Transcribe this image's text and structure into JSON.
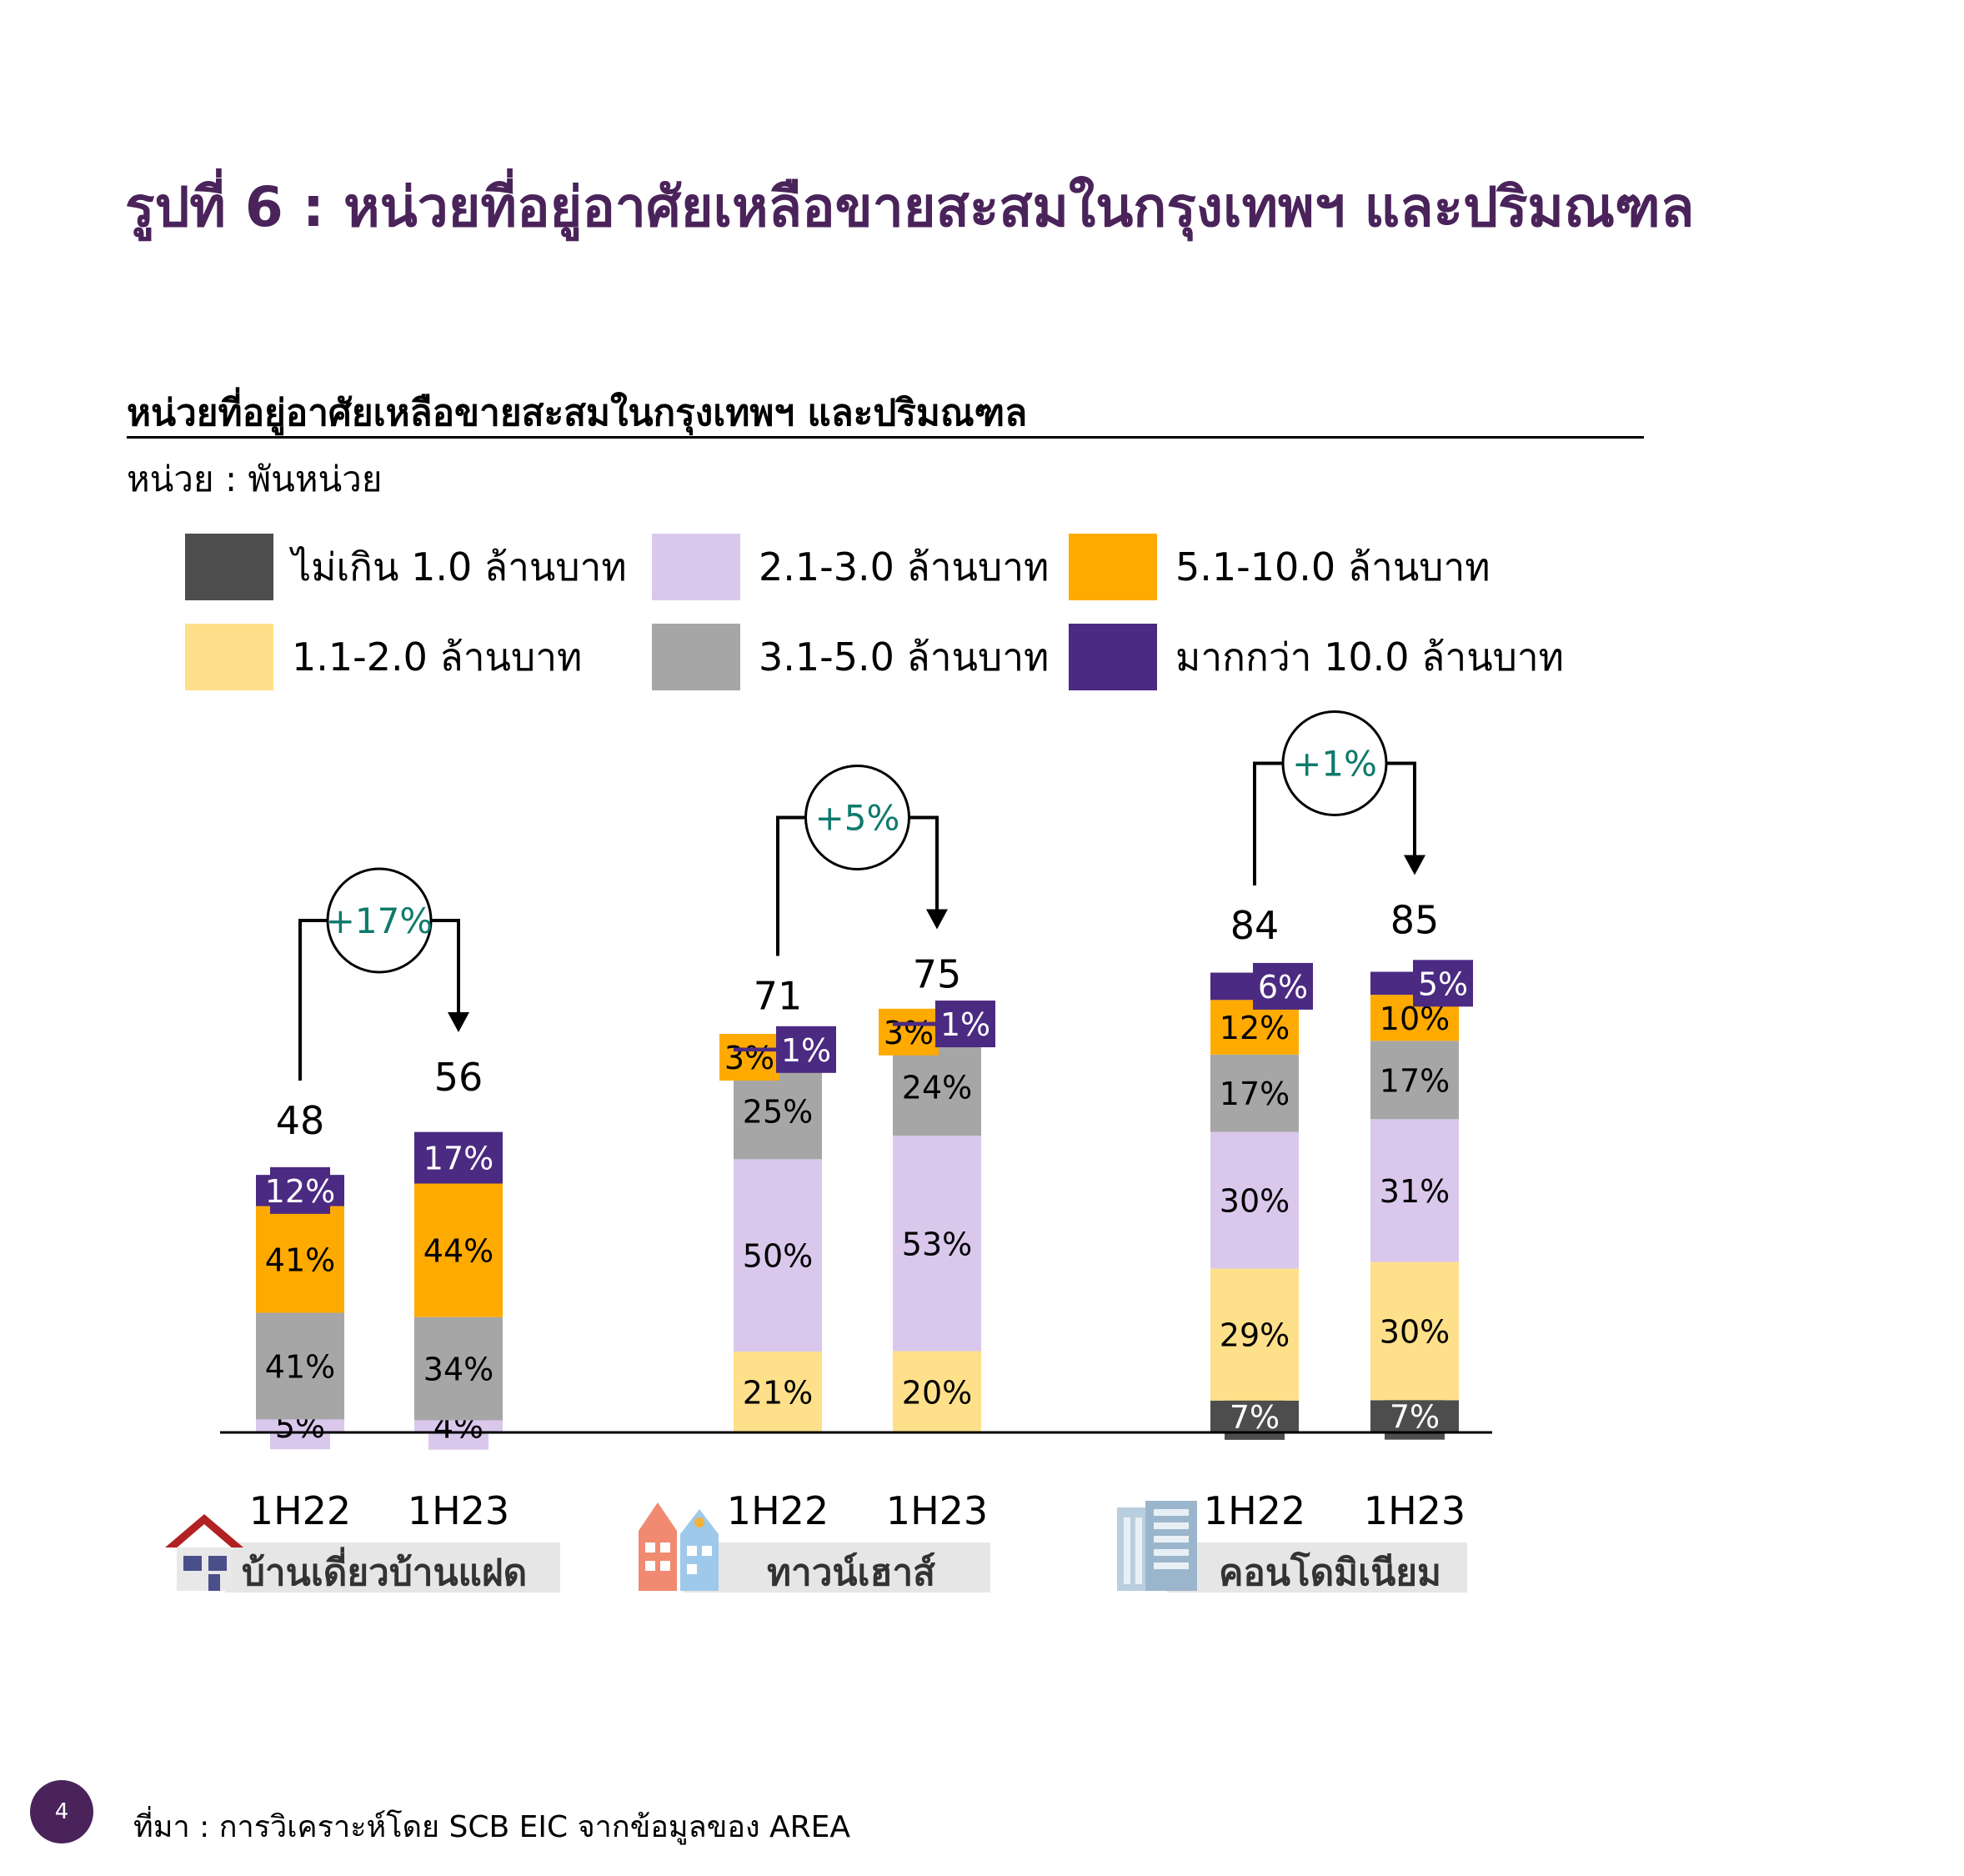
{
  "title": "รูปที่ 6 : หน่วยที่อยู่อาศัยเหลือขายสะสมในกรุงเทพฯ และปริมณฑล",
  "subtitle": "หน่วยที่อยู่อาศัยเหลือขายสะสมในกรุงเทพฯ และปริมณฑล",
  "unit": "หน่วย : พันหน่วย",
  "source": "ที่มา : การวิเคราะห์โดย SCB EIC จากข้อมูลของ AREA",
  "page_number": "4",
  "legend": [
    {
      "label": "ไม่เกิน 1.0 ล้านบาท",
      "color": "#4d4d4d"
    },
    {
      "label": "2.1-3.0 ล้านบาท",
      "color": "#d9c8ec"
    },
    {
      "label": "5.1-10.0 ล้านบาท",
      "color": "#ffaa00"
    },
    {
      "label": "1.1-2.0 ล้านบาท",
      "color": "#ffe08a"
    },
    {
      "label": "3.1-5.0 ล้านบาท",
      "color": "#a6a6a6"
    },
    {
      "label": "มากกว่า 10.0 ล้านบาท",
      "color": "#4b2a82"
    }
  ],
  "categories": [
    {
      "label": "บ้านเดี่ยวบ้านแฝด",
      "icon": "house-icon"
    },
    {
      "label": "ทาวน์เฮาส์",
      "icon": "townhouse-icon"
    },
    {
      "label": "คอนโดมิเนียม",
      "icon": "condominium-icon"
    }
  ],
  "chart_data": {
    "type": "bar",
    "stacked": true,
    "segment_order": [
      "ไม่เกิน 1.0 ล้านบาท",
      "1.1-2.0 ล้านบาท",
      "2.1-3.0 ล้านบาท",
      "3.1-5.0 ล้านบาท",
      "5.1-10.0 ล้านบาท",
      "มากกว่า 10.0 ล้านบาท"
    ],
    "groups": [
      {
        "category": "บ้านเดี่ยวบ้านแฝด",
        "change": "+17%",
        "bars": [
          {
            "period": "1H22",
            "total": "48",
            "total_value": 48,
            "percents": [
              0,
              0,
              5,
              41,
              41,
              12
            ],
            "labels": [
              "",
              "",
              "5%",
              "41%",
              "41%",
              "12%"
            ]
          },
          {
            "period": "1H23",
            "total": "56",
            "total_value": 56,
            "percents": [
              0,
              0,
              4,
              34,
              44,
              17
            ],
            "labels": [
              "",
              "",
              "4%",
              "34%",
              "44%",
              "17%"
            ]
          }
        ]
      },
      {
        "category": "ทาวน์เฮาส์",
        "change": "+5%",
        "bars": [
          {
            "period": "1H22",
            "total": "71",
            "total_value": 71,
            "percents": [
              0,
              21,
              50,
              25,
              3,
              1
            ],
            "labels": [
              "",
              "21%",
              "50%",
              "25%",
              "3%",
              "1%"
            ]
          },
          {
            "period": "1H23",
            "total": "75",
            "total_value": 75,
            "percents": [
              0,
              20,
              53,
              24,
              3,
              1
            ],
            "labels": [
              "",
              "20%",
              "53%",
              "24%",
              "3%",
              "1%"
            ]
          }
        ]
      },
      {
        "category": "คอนโดมิเนียม",
        "change": "+1%",
        "bars": [
          {
            "period": "1H22",
            "total": "84",
            "total_value": 84,
            "percents": [
              7,
              29,
              30,
              17,
              12,
              6
            ],
            "labels": [
              "7%",
              "29%",
              "30%",
              "17%",
              "12%",
              "6%"
            ]
          },
          {
            "period": "1H23",
            "total": "85",
            "total_value": 85,
            "percents": [
              7,
              30,
              31,
              17,
              10,
              5
            ],
            "labels": [
              "7%",
              "30%",
              "31%",
              "17%",
              "10%",
              "5%"
            ]
          }
        ]
      }
    ],
    "colors": [
      "#4d4d4d",
      "#ffe08a",
      "#d9c8ec",
      "#a6a6a6",
      "#ffaa00",
      "#4b2a82"
    ],
    "change_color": "#0e7a6b"
  }
}
